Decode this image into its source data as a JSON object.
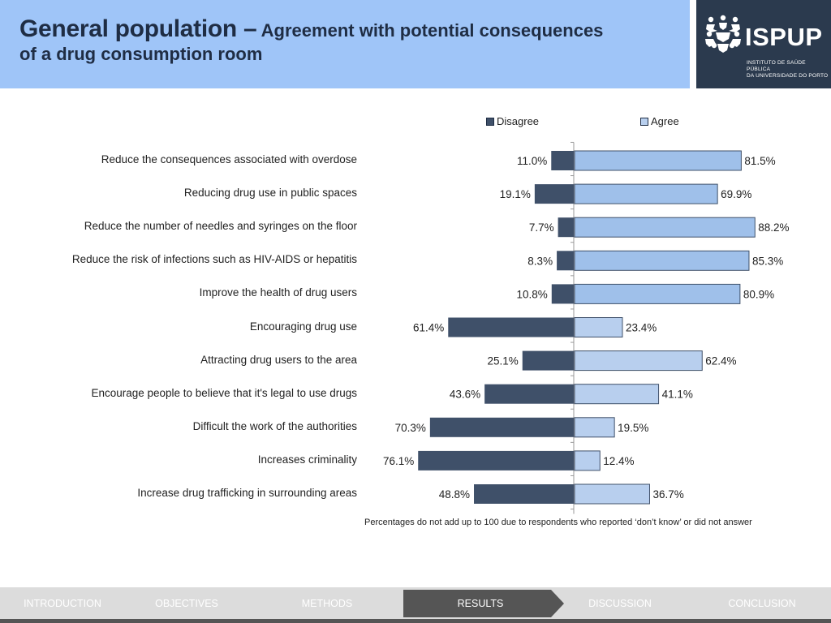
{
  "header": {
    "title_main": "General population –",
    "title_rest": " Agreement with potential consequences",
    "title_line2": "of a drug consumption room"
  },
  "logo": {
    "name": "ISPUP",
    "subtitle_line1": "INSTITUTO DE SAÚDE PÚBLICA",
    "subtitle_line2": "DA UNIVERSIDADE DO PORTO"
  },
  "colors": {
    "disagree": "#3f5069",
    "agree": "#b8cfee",
    "agree_strong": "#9fc0ea",
    "axis": "#999999"
  },
  "chart_data": {
    "type": "bar",
    "orientation": "horizontal-diverging",
    "categories": [
      "Reduce the consequences associated with overdose",
      "Reducing drug use in public spaces",
      "Reduce the number of needles and syringes on the floor",
      "Reduce the risk of infections such as HIV-AIDS or hepatitis",
      "Improve the health of drug users",
      "Encouraging drug use",
      "Attracting drug users to the area",
      "Encourage people to believe that it's legal to use drugs",
      "Difficult the work of the authorities",
      "Increases criminality",
      "Increase drug trafficking in surrounding areas"
    ],
    "series": [
      {
        "name": "Disagree",
        "values": [
          11.0,
          19.1,
          7.7,
          8.3,
          10.8,
          61.4,
          25.1,
          43.6,
          70.3,
          76.1,
          48.8
        ],
        "labels": [
          "11.0%",
          "19.1%",
          "7.7%",
          "8.3%",
          "10.8%",
          "61.4%",
          "25.1%",
          "43.6%",
          "70.3%",
          "76.1%",
          "48.8%"
        ]
      },
      {
        "name": "Agree",
        "values": [
          81.5,
          69.9,
          88.2,
          85.3,
          80.9,
          23.4,
          62.4,
          41.1,
          19.5,
          12.4,
          36.7
        ],
        "labels": [
          "81.5%",
          "69.9%",
          "88.2%",
          "85.3%",
          "80.9%",
          "23.4%",
          "62.4%",
          "41.1%",
          "19.5%",
          "12.4%",
          "36.7%"
        ]
      }
    ],
    "unit": "%",
    "legend_position": "top",
    "footnote": "Percentages do not add up to 100 due to respondents who reported ‘don’t know’ or did not answer"
  },
  "nav": {
    "items": [
      "INTRODUCTION",
      "OBJECTIVES",
      "METHODS",
      "RESULTS",
      "DISCUSSION",
      "CONCLUSION"
    ],
    "active": "RESULTS"
  }
}
